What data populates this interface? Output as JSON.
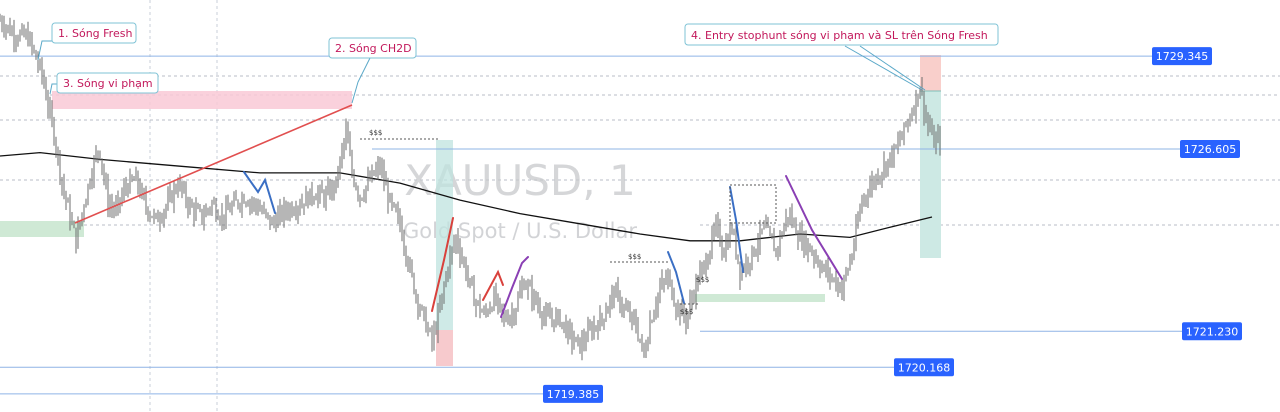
{
  "chart_data": {
    "type": "candlestick",
    "symbol": "XAUUSD, 1",
    "description": "Gold Spot / U.S. Dollar",
    "ylim": [
      1718.85,
      1731.0
    ],
    "price_levels": [
      {
        "value": 1729.345,
        "label": "1729.345",
        "style": "solid"
      },
      {
        "value": 1726.605,
        "label": "1726.605",
        "style": "solid"
      },
      {
        "value": 1721.23,
        "label": "1721.230",
        "style": "solid"
      },
      {
        "value": 1720.168,
        "label": "1720.168",
        "style": "solid"
      },
      {
        "value": 1719.385,
        "label": "1719.385",
        "style": "solid"
      }
    ],
    "annotations": [
      {
        "text": "1. Sóng Fresh"
      },
      {
        "text": "2. Sóng CH2D"
      },
      {
        "text": "3. Sóng vi phạm"
      },
      {
        "text": "4. Entry stophunt sóng vi phạm và SL trên Sóng Fresh"
      }
    ],
    "liquidity_marks": [
      "$$$",
      "$$$",
      "$$$",
      "$$$"
    ],
    "price_path": [
      [
        0,
        1730.4
      ],
      [
        14,
        1730.0
      ],
      [
        28,
        1729.9
      ],
      [
        42,
        1728.8
      ],
      [
        48,
        1727.9
      ],
      [
        55,
        1726.9
      ],
      [
        62,
        1725.6
      ],
      [
        70,
        1724.6
      ],
      [
        76,
        1723.9
      ],
      [
        84,
        1725.0
      ],
      [
        92,
        1726.0
      ],
      [
        99,
        1726.7
      ],
      [
        108,
        1725.0
      ],
      [
        116,
        1724.8
      ],
      [
        126,
        1725.5
      ],
      [
        136,
        1725.7
      ],
      [
        146,
        1724.9
      ],
      [
        156,
        1724.5
      ],
      [
        168,
        1725.0
      ],
      [
        178,
        1725.6
      ],
      [
        190,
        1724.9
      ],
      [
        202,
        1724.6
      ],
      [
        212,
        1725.0
      ],
      [
        222,
        1724.6
      ],
      [
        232,
        1724.9
      ],
      [
        244,
        1725.2
      ],
      [
        258,
        1724.9
      ],
      [
        272,
        1724.4
      ],
      [
        285,
        1724.8
      ],
      [
        300,
        1725.0
      ],
      [
        314,
        1725.3
      ],
      [
        326,
        1725.2
      ],
      [
        336,
        1725.6
      ],
      [
        346,
        1727.1
      ],
      [
        352,
        1725.9
      ],
      [
        360,
        1725.2
      ],
      [
        370,
        1725.7
      ],
      [
        380,
        1726.1
      ],
      [
        390,
        1725.0
      ],
      [
        400,
        1724.4
      ],
      [
        408,
        1723.3
      ],
      [
        416,
        1722.3
      ],
      [
        424,
        1721.6
      ],
      [
        432,
        1720.9
      ],
      [
        440,
        1721.9
      ],
      [
        448,
        1723.2
      ],
      [
        456,
        1724.0
      ],
      [
        464,
        1723.2
      ],
      [
        474,
        1722.2
      ],
      [
        484,
        1721.7
      ],
      [
        494,
        1722.2
      ],
      [
        504,
        1721.6
      ],
      [
        514,
        1721.8
      ],
      [
        524,
        1722.7
      ],
      [
        534,
        1722.2
      ],
      [
        546,
        1721.6
      ],
      [
        560,
        1721.6
      ],
      [
        572,
        1721.0
      ],
      [
        580,
        1720.8
      ],
      [
        592,
        1721.3
      ],
      [
        602,
        1721.6
      ],
      [
        614,
        1722.4
      ],
      [
        626,
        1721.8
      ],
      [
        636,
        1721.4
      ],
      [
        644,
        1720.5
      ],
      [
        650,
        1721.5
      ],
      [
        660,
        1722.5
      ],
      [
        668,
        1722.8
      ],
      [
        676,
        1722.0
      ],
      [
        686,
        1721.6
      ],
      [
        696,
        1722.6
      ],
      [
        706,
        1723.3
      ],
      [
        716,
        1724.3
      ],
      [
        724,
        1723.6
      ],
      [
        732,
        1724.3
      ],
      [
        740,
        1723.0
      ],
      [
        752,
        1723.5
      ],
      [
        764,
        1724.3
      ],
      [
        776,
        1723.6
      ],
      [
        788,
        1724.7
      ],
      [
        800,
        1724.0
      ],
      [
        812,
        1723.6
      ],
      [
        822,
        1723.1
      ],
      [
        832,
        1722.8
      ],
      [
        842,
        1722.5
      ],
      [
        852,
        1723.5
      ],
      [
        862,
        1725.1
      ],
      [
        872,
        1725.6
      ],
      [
        884,
        1726.1
      ],
      [
        896,
        1726.6
      ],
      [
        906,
        1727.3
      ],
      [
        914,
        1727.9
      ],
      [
        920,
        1728.5
      ],
      [
        926,
        1727.5
      ],
      [
        934,
        1726.8
      ],
      [
        940,
        1726.9
      ]
    ],
    "moving_average": [
      [
        0,
        1726.4
      ],
      [
        40,
        1726.5
      ],
      [
        100,
        1726.3
      ],
      [
        180,
        1726.1
      ],
      [
        260,
        1725.9
      ],
      [
        340,
        1725.9
      ],
      [
        400,
        1725.6
      ],
      [
        460,
        1725.1
      ],
      [
        520,
        1724.7
      ],
      [
        580,
        1724.4
      ],
      [
        640,
        1724.1
      ],
      [
        690,
        1723.9
      ],
      [
        740,
        1723.9
      ],
      [
        800,
        1724.1
      ],
      [
        850,
        1724.0
      ],
      [
        890,
        1724.3
      ],
      [
        932,
        1724.6
      ]
    ]
  }
}
